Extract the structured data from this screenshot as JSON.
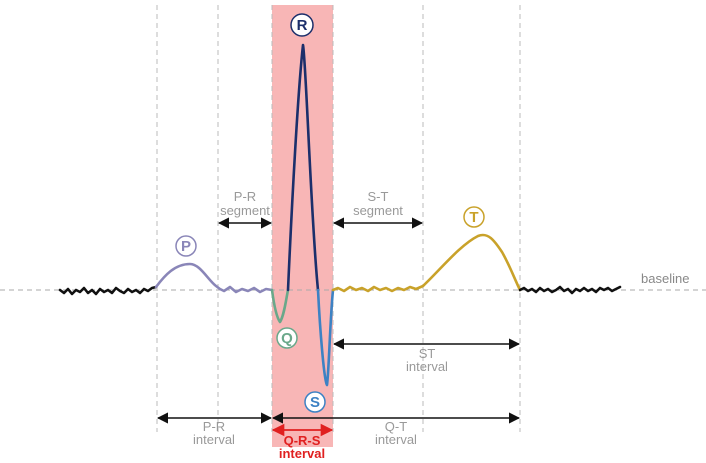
{
  "waves": {
    "p": {
      "label": "P",
      "color": "#8a86b8"
    },
    "q": {
      "label": "Q",
      "color": "#6aa88a"
    },
    "r": {
      "label": "R",
      "color": "#1c2f6b"
    },
    "s": {
      "label": "S",
      "color": "#3d82c4"
    },
    "t": {
      "label": "T",
      "color": "#c9a22a"
    }
  },
  "baseline": {
    "label": "baseline"
  },
  "segments": {
    "pr": {
      "line1": "P-R",
      "line2": "segment"
    },
    "st": {
      "line1": "S-T",
      "line2": "segment"
    }
  },
  "intervals": {
    "pr": {
      "line1": "P-R",
      "line2": "interval"
    },
    "qrs": {
      "line1": "Q-R-S",
      "line2": "interval"
    },
    "qt": {
      "line1": "Q-T",
      "line2": "interval"
    },
    "st": {
      "line1": "ST",
      "line2": "interval"
    }
  },
  "colors": {
    "qrs_band": "#f8b6b6",
    "qrs_arrow": "#e02020",
    "noise": "#111111"
  }
}
